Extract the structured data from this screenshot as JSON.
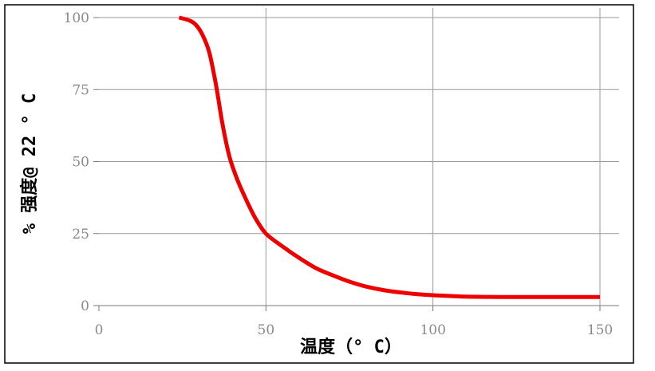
{
  "chart_data": {
    "type": "line",
    "title": "",
    "xlabel": "温度（° C）",
    "ylabel": "% 强度@ 22 ° C",
    "xlim": [
      0,
      150
    ],
    "ylim": [
      0,
      100
    ],
    "x_ticks": [
      0,
      50,
      100,
      150
    ],
    "y_ticks": [
      0,
      25,
      50,
      75,
      100
    ],
    "grid": true,
    "colors": {
      "line": "#ee0000",
      "grid": "#9a9a9a",
      "tick_label": "#8a8a8a",
      "frame": "#000000"
    },
    "series": [
      {
        "x": [
          24,
          27,
          29,
          31,
          33,
          35,
          37,
          39,
          41,
          43,
          45,
          47,
          50,
          55,
          60,
          65,
          70,
          75,
          80,
          85,
          90,
          95,
          100,
          110,
          120,
          130,
          140,
          150
        ],
        "values": [
          100,
          99,
          97.5,
          94,
          88,
          77,
          63,
          52,
          45,
          39.5,
          34.5,
          30,
          25,
          20.5,
          16.5,
          13,
          10.5,
          8.3,
          6.6,
          5.4,
          4.6,
          4,
          3.6,
          3.1,
          3,
          3,
          3,
          3
        ]
      }
    ]
  }
}
